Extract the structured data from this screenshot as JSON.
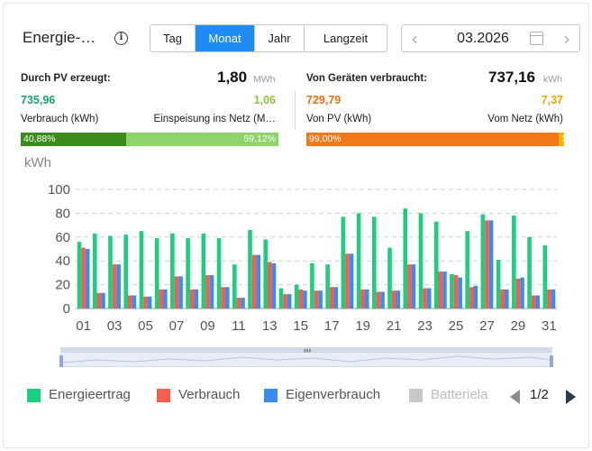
{
  "header": {
    "title": "Energie-…",
    "tabs": [
      {
        "label": "Tag",
        "active": false
      },
      {
        "label": "Monat",
        "active": true
      },
      {
        "label": "Jahr",
        "active": false
      },
      {
        "label": "Langzeit",
        "active": false
      }
    ],
    "date": "03.2026",
    "accent_color": "#1f8cf5"
  },
  "pv": {
    "label": "Durch PV erzeugt:",
    "total": "1,80",
    "unit": "MWh",
    "left_value": "735,96",
    "right_value": "1,06",
    "left_label": "Verbrauch (kWh)",
    "right_label": "Einspeisung ins Netz (M…",
    "left_percent": "40,88%",
    "right_percent": "59,12%",
    "left_share": 0.4088,
    "left_color": "#3a8d1c",
    "right_color": "#8ed46a",
    "left_value_color": "#1aa36a",
    "right_value_color": "#8cc63e"
  },
  "consumption": {
    "label": "Von Geräten verbraucht:",
    "total": "737,16",
    "unit": "kWh",
    "left_value": "729,79",
    "right_value": "7,37",
    "left_label": "Von PV (kWh)",
    "right_label": "Vom Netz (kWh)",
    "left_percent": "99,00%",
    "right_percent": "1,00%",
    "left_share": 0.99,
    "left_color": "#f07a1a",
    "right_color": "#f5b400",
    "left_value_color": "#e8700f",
    "right_value_color": "#f0a500"
  },
  "chart_data": {
    "type": "bar",
    "ylabel": "kWh",
    "ylim": [
      0,
      100
    ],
    "yticks": [
      "0",
      "20",
      "40",
      "60",
      "80",
      "100"
    ],
    "xtick_labels": [
      "01",
      "03",
      "05",
      "07",
      "09",
      "11",
      "13",
      "15",
      "17",
      "19",
      "21",
      "23",
      "25",
      "27",
      "29",
      "31"
    ],
    "categories": [
      "01",
      "02",
      "03",
      "04",
      "05",
      "06",
      "07",
      "08",
      "09",
      "10",
      "11",
      "12",
      "13",
      "14",
      "15",
      "16",
      "17",
      "18",
      "19",
      "20",
      "21",
      "22",
      "23",
      "24",
      "25",
      "26",
      "27",
      "28",
      "29",
      "30",
      "31"
    ],
    "series": [
      {
        "name": "Energieertrag",
        "color": "#1ccf7e",
        "values": [
          56,
          63,
          61,
          62,
          65,
          59,
          63,
          59,
          63,
          59,
          37,
          66,
          58,
          17,
          20,
          38,
          37,
          77,
          80,
          77,
          51,
          84,
          80,
          73,
          29,
          65,
          79,
          41,
          78,
          60,
          53
        ]
      },
      {
        "name": "Verbrauch",
        "color": "#f25f4f",
        "values": [
          51,
          13,
          37,
          11,
          10,
          16,
          27,
          16,
          28,
          18,
          9,
          45,
          39,
          12,
          16,
          15,
          18,
          46,
          16,
          14,
          15,
          37,
          17,
          31,
          28,
          18,
          74,
          16,
          25,
          11,
          16
        ]
      },
      {
        "name": "Eigenverbrauch",
        "color": "#3b8cf0",
        "values": [
          50,
          13,
          37,
          11,
          10,
          16,
          27,
          16,
          28,
          18,
          9,
          45,
          38,
          12,
          15,
          15,
          18,
          46,
          16,
          14,
          15,
          37,
          17,
          31,
          26,
          19,
          74,
          16,
          26,
          11,
          16
        ]
      }
    ],
    "grid": true
  },
  "legend": [
    {
      "label": "Energieertrag",
      "color": "#1ccf7e"
    },
    {
      "label": "Verbrauch",
      "color": "#f25f4f"
    },
    {
      "label": "Eigenverbrauch",
      "color": "#3b8cf0"
    },
    {
      "label": "Batteriela",
      "color": "#c8c8c8"
    }
  ],
  "pager": "1/2"
}
